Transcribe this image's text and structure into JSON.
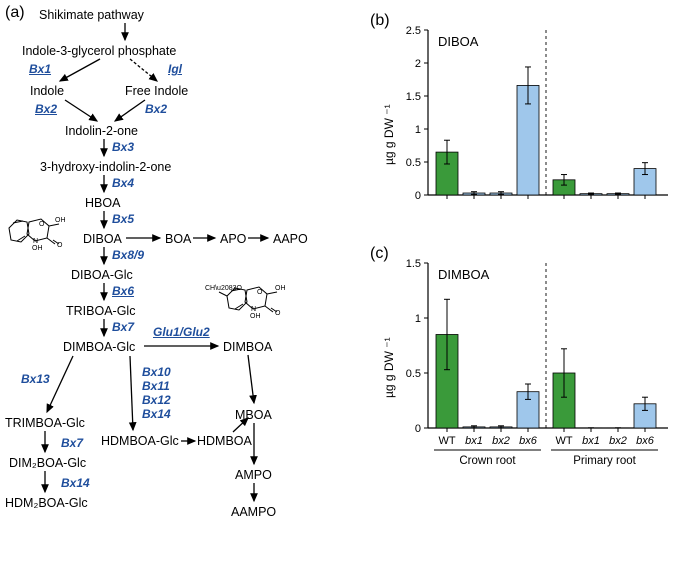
{
  "panels": {
    "a": "(a)",
    "b": "(b)",
    "c": "(c)"
  },
  "pathway": {
    "nodes": {
      "shikimate": "Shikimate pathway",
      "i3gp": "Indole-3-glycerol phosphate",
      "indole": "Indole",
      "freeindole": "Free Indole",
      "indolin2one": "Indolin-2-one",
      "hydroxyind": "3-hydroxy-indolin-2-one",
      "hboa": "HBOA",
      "diboa": "DIBOA",
      "boa": "BOA",
      "apo": "APO",
      "aapo": "AAPO",
      "diboaglc": "DIBOA-Glc",
      "triboaglc": "TRIBOA-Glc",
      "dimboaglc": "DIMBOA-Glc",
      "dimboa": "DIMBOA",
      "mboa": "MBOA",
      "trimboaglc": "TRIMBOA-Glc",
      "dim2boaglc": "DIM₂BOA-Glc",
      "hdm2boaglc": "HDM₂BOA-Glc",
      "hdmboaglc": "HDMBOA-Glc",
      "hdmboa": "HDMBOA",
      "ampo": "AMPO",
      "aampo": "AAMPO"
    },
    "genes": {
      "bx1": "Bx1",
      "igl": "Igl",
      "bx2a": "Bx2",
      "bx2b": "Bx2",
      "bx3": "Bx3",
      "bx4": "Bx4",
      "bx5": "Bx5",
      "bx89": "Bx8/9",
      "bx6": "Bx6",
      "bx7a": "Bx7",
      "glu12": "Glu1/Glu2",
      "bx13": "Bx13",
      "bx10_14": "Bx10\nBx11\nBx12\nBx14",
      "bx7b": "Bx7",
      "bx14": "Bx14"
    }
  },
  "chart_b": {
    "title": "DIBOA",
    "ytitle": "µg g DW ⁻¹",
    "ylim": [
      0,
      2.5
    ],
    "ytick_step": 0.5,
    "groups": [
      "Crown root",
      "Primary root"
    ],
    "categories": [
      "WT",
      "bx1",
      "bx2",
      "bx6"
    ],
    "values": [
      0.65,
      0.03,
      0.03,
      1.66,
      0.23,
      0.02,
      0.02,
      0.4
    ],
    "err": [
      0.18,
      0.02,
      0.02,
      0.28,
      0.08,
      0.01,
      0.01,
      0.09
    ],
    "colors": [
      "#3a9a3a",
      "#9fc7eb",
      "#9fc7eb",
      "#9fc7eb",
      "#3a9a3a",
      "#9fc7eb",
      "#9fc7eb",
      "#9fc7eb"
    ]
  },
  "chart_c": {
    "title": "DIMBOA",
    "ytitle": "µg g DW ⁻¹",
    "ylim": [
      0,
      1.5
    ],
    "ytick_step": 0.5,
    "groups": [
      "Crown root",
      "Primary root"
    ],
    "categories": [
      "WT",
      "bx1",
      "bx2",
      "bx6"
    ],
    "values": [
      0.85,
      0.01,
      0.01,
      0.33,
      0.5,
      0.001,
      0.001,
      0.22
    ],
    "err": [
      0.32,
      0.01,
      0.01,
      0.07,
      0.22,
      0.001,
      0.001,
      0.06
    ],
    "colors": [
      "#3a9a3a",
      "#9fc7eb",
      "#9fc7eb",
      "#9fc7eb",
      "#3a9a3a",
      "#9fc7eb",
      "#9fc7eb",
      "#9fc7eb"
    ]
  },
  "style": {
    "text_color": "#000000",
    "gene_color": "#1f4e9c",
    "axis_color": "#000000",
    "bar_stroke": "#000000",
    "font_size_node": 12.5,
    "font_size_gene": 12
  }
}
